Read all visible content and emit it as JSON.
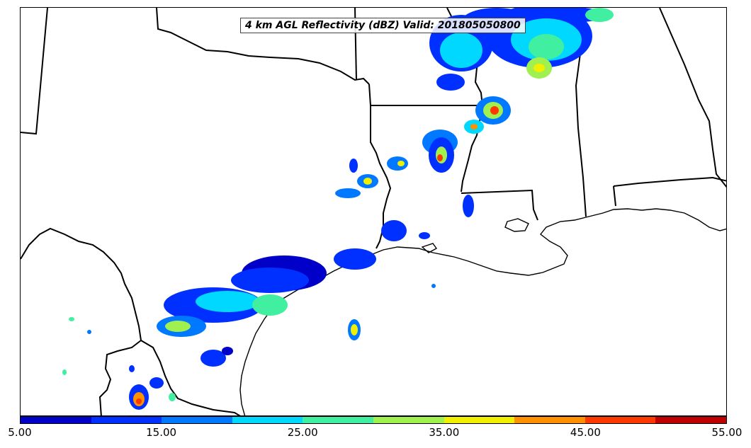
{
  "title": "4 km AGL Reflectivity (dBZ) Valid: 201805050800",
  "colorbar": {
    "colors": [
      "#0000c8",
      "#0030ff",
      "#0078ff",
      "#00d8ff",
      "#40f0a0",
      "#a0f050",
      "#f0f000",
      "#ff9000",
      "#ff3800",
      "#c00000"
    ],
    "tick_labels": [
      "5.00",
      "15.00",
      "25.00",
      "35.00",
      "45.00",
      "55.00"
    ]
  },
  "colors": {
    "state_border": "#000000",
    "background": "#ffffff"
  }
}
